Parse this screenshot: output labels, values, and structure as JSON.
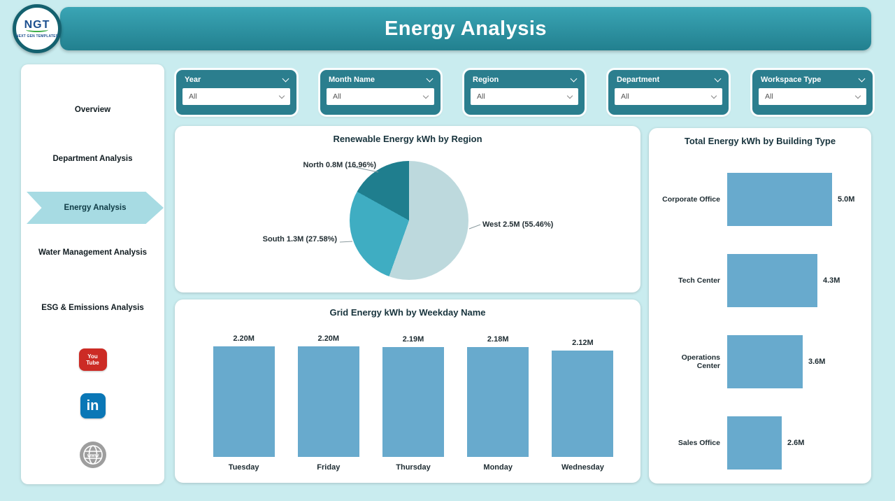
{
  "header": {
    "title": "Energy Analysis",
    "logo_text": "NGT",
    "logo_subtext": "NEXT GEN TEMPLATES"
  },
  "sidebar": {
    "items": [
      {
        "label": "Overview",
        "active": false
      },
      {
        "label": "Department Analysis",
        "active": false
      },
      {
        "label": "Energy Analysis",
        "active": true
      },
      {
        "label": "Water Management Analysis",
        "active": false
      },
      {
        "label": "ESG & Emissions Analysis",
        "active": false
      }
    ],
    "social": [
      {
        "name": "youtube",
        "line1": "You",
        "line2": "Tube"
      },
      {
        "name": "linkedin",
        "glyph": "in"
      },
      {
        "name": "website",
        "glyph": "www"
      }
    ]
  },
  "filters": [
    {
      "label": "Year",
      "value": "All"
    },
    {
      "label": "Month Name",
      "value": "All"
    },
    {
      "label": "Region",
      "value": "All"
    },
    {
      "label": "Department",
      "value": "All"
    },
    {
      "label": "Workspace Type",
      "value": "All"
    }
  ],
  "colors": {
    "accent_teal": "#2b7e8e",
    "bar_blue": "#68aacd",
    "header_teal": "#2e95a5",
    "active_nav": "#a7dbe3",
    "background": "#c9ecef"
  },
  "chart_data": [
    {
      "type": "pie",
      "title": "Renewable Energy kWh by Region",
      "start_angle_deg": 0,
      "direction": "clockwise",
      "slices": [
        {
          "label": "West",
          "value_m": 2.5,
          "pct": 55.46,
          "value_label": "West 2.5M (55.46%)",
          "color": "#bdd9dd"
        },
        {
          "label": "South",
          "value_m": 1.3,
          "pct": 27.58,
          "value_label": "South 1.3M (27.58%)",
          "color": "#3fadc2"
        },
        {
          "label": "North",
          "value_m": 0.8,
          "pct": 16.96,
          "value_label": "North 0.8M (16.96%)",
          "color": "#1f7e8e"
        }
      ]
    },
    {
      "type": "bar",
      "title": "Grid Energy kWh by Weekday Name",
      "categories": [
        "Tuesday",
        "Friday",
        "Thursday",
        "Monday",
        "Wednesday"
      ],
      "values": [
        2.2,
        2.2,
        2.19,
        2.18,
        2.12
      ],
      "value_labels": [
        "2.20M",
        "2.20M",
        "2.19M",
        "2.18M",
        "2.12M"
      ],
      "bar_color": "#68aacd",
      "ylabel": "Grid Energy kWh",
      "ylim": [
        0,
        2.2
      ],
      "grid": false
    },
    {
      "type": "bar-horizontal",
      "title": "Total Energy kWh by Building Type",
      "categories": [
        "Corporate Office",
        "Tech Center",
        "Operations Center",
        "Sales Office"
      ],
      "values": [
        5.0,
        4.3,
        3.6,
        2.6
      ],
      "value_labels": [
        "5.0M",
        "4.3M",
        "3.6M",
        "2.6M"
      ],
      "bar_color": "#68aacd",
      "xlabel": "Total Energy kWh",
      "xlim": [
        0,
        5.0
      ],
      "grid": false
    }
  ]
}
